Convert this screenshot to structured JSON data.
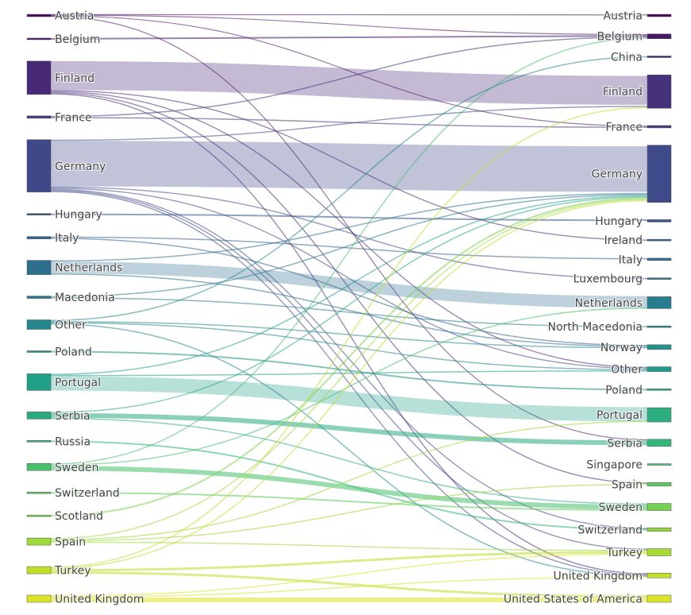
{
  "chart_data": {
    "type": "sankey",
    "title": "",
    "sources": [
      {
        "name": "Austria",
        "value": 1
      },
      {
        "name": "Belgium",
        "value": 0.5
      },
      {
        "name": "Finland",
        "value": 14
      },
      {
        "name": "France",
        "value": 1
      },
      {
        "name": "Germany",
        "value": 22
      },
      {
        "name": "Hungary",
        "value": 0.5
      },
      {
        "name": "Italy",
        "value": 1
      },
      {
        "name": "Netherlands",
        "value": 6
      },
      {
        "name": "Macedonia",
        "value": 1
      },
      {
        "name": "Other",
        "value": 4
      },
      {
        "name": "Poland",
        "value": 0.5
      },
      {
        "name": "Portugal",
        "value": 7
      },
      {
        "name": "Serbia",
        "value": 3
      },
      {
        "name": "Russia",
        "value": 0.5
      },
      {
        "name": "Sweden",
        "value": 3
      },
      {
        "name": "Switzerland",
        "value": 0.5
      },
      {
        "name": "Scotland",
        "value": 0.5
      },
      {
        "name": "Spain",
        "value": 3
      },
      {
        "name": "Turkey",
        "value": 3
      },
      {
        "name": "United Kingdom",
        "value": 3
      }
    ],
    "targets": [
      {
        "name": "Austria",
        "value": 1
      },
      {
        "name": "Belgium",
        "value": 2
      },
      {
        "name": "China",
        "value": 0.5
      },
      {
        "name": "Finland",
        "value": 14
      },
      {
        "name": "France",
        "value": 1
      },
      {
        "name": "Germany",
        "value": 24
      },
      {
        "name": "Hungary",
        "value": 1
      },
      {
        "name": "Ireland",
        "value": 0.5
      },
      {
        "name": "Italy",
        "value": 1
      },
      {
        "name": "Luxembourg",
        "value": 0.5
      },
      {
        "name": "Netherlands",
        "value": 5
      },
      {
        "name": "North Macedonia",
        "value": 0.5
      },
      {
        "name": "Norway",
        "value": 2
      },
      {
        "name": "Other",
        "value": 2
      },
      {
        "name": "Poland",
        "value": 0.5
      },
      {
        "name": "Portugal",
        "value": 6
      },
      {
        "name": "Serbia",
        "value": 3
      },
      {
        "name": "Singapore",
        "value": 0.5
      },
      {
        "name": "Spain",
        "value": 1.5
      },
      {
        "name": "Sweden",
        "value": 3
      },
      {
        "name": "Switzerland",
        "value": 1.5
      },
      {
        "name": "Turkey",
        "value": 3
      },
      {
        "name": "United Kingdom",
        "value": 2
      },
      {
        "name": "United States of America",
        "value": 3
      }
    ],
    "links": [
      {
        "source": "Austria",
        "target": "Austria",
        "value": 0.5
      },
      {
        "source": "Austria",
        "target": "Belgium",
        "value": 0.5
      },
      {
        "source": "Austria",
        "target": "France",
        "value": 0.5
      },
      {
        "source": "Austria",
        "target": "Serbia",
        "value": 0.5
      },
      {
        "source": "Belgium",
        "target": "Belgium",
        "value": 0.5
      },
      {
        "source": "Finland",
        "target": "Finland",
        "value": 13
      },
      {
        "source": "Finland",
        "target": "Ireland",
        "value": 0.5
      },
      {
        "source": "Finland",
        "target": "Other",
        "value": 0.5
      },
      {
        "source": "Finland",
        "target": "Spain",
        "value": 0.5
      },
      {
        "source": "Finland",
        "target": "United Kingdom",
        "value": 0.5
      },
      {
        "source": "France",
        "target": "Belgium",
        "value": 0.5
      },
      {
        "source": "France",
        "target": "France",
        "value": 0.5
      },
      {
        "source": "Germany",
        "target": "Finland",
        "value": 0.5
      },
      {
        "source": "Germany",
        "target": "Germany",
        "value": 20
      },
      {
        "source": "Germany",
        "target": "Luxembourg",
        "value": 0.5
      },
      {
        "source": "Germany",
        "target": "Other",
        "value": 0.5
      },
      {
        "source": "Germany",
        "target": "Switzerland",
        "value": 0.5
      },
      {
        "source": "Germany",
        "target": "Turkey",
        "value": 0.5
      },
      {
        "source": "Germany",
        "target": "United Kingdom",
        "value": 0.5
      },
      {
        "source": "Hungary",
        "target": "Hungary",
        "value": 0.5
      },
      {
        "source": "Italy",
        "target": "Italy",
        "value": 0.5
      },
      {
        "source": "Italy",
        "target": "Norway",
        "value": 0.5
      },
      {
        "source": "Netherlands",
        "target": "Netherlands",
        "value": 5
      },
      {
        "source": "Netherlands",
        "target": "Germany",
        "value": 0.5
      },
      {
        "source": "Netherlands",
        "target": "Norway",
        "value": 0.5
      },
      {
        "source": "Macedonia",
        "target": "North Macedonia",
        "value": 0.5
      },
      {
        "source": "Macedonia",
        "target": "Germany",
        "value": 0.5
      },
      {
        "source": "Other",
        "target": "China",
        "value": 0.5
      },
      {
        "source": "Other",
        "target": "Norway",
        "value": 0.5
      },
      {
        "source": "Other",
        "target": "Other",
        "value": 0.5
      },
      {
        "source": "Other",
        "target": "United Kingdom",
        "value": 0.5
      },
      {
        "source": "Poland",
        "target": "Poland",
        "value": 0.5
      },
      {
        "source": "Portugal",
        "target": "Portugal",
        "value": 6
      },
      {
        "source": "Portugal",
        "target": "Germany",
        "value": 0.5
      },
      {
        "source": "Portugal",
        "target": "Other",
        "value": 0.5
      },
      {
        "source": "Serbia",
        "target": "Serbia",
        "value": 2
      },
      {
        "source": "Serbia",
        "target": "Germany",
        "value": 0.5
      },
      {
        "source": "Serbia",
        "target": "Sweden",
        "value": 0.5
      },
      {
        "source": "Russia",
        "target": "Switzerland",
        "value": 0.5
      },
      {
        "source": "Sweden",
        "target": "Sweden",
        "value": 2
      },
      {
        "source": "Sweden",
        "target": "Belgium",
        "value": 0.5
      },
      {
        "source": "Sweden",
        "target": "Netherlands",
        "value": 0.5
      },
      {
        "source": "Switzerland",
        "target": "Sweden",
        "value": 0.5
      },
      {
        "source": "Scotland",
        "target": "Germany",
        "value": 0.5
      },
      {
        "source": "Spain",
        "target": "Spain",
        "value": 0.5
      },
      {
        "source": "Spain",
        "target": "Turkey",
        "value": 0.5
      },
      {
        "source": "Spain",
        "target": "Germany",
        "value": 0.5
      },
      {
        "source": "Spain",
        "target": "Portugal",
        "value": 0.5
      },
      {
        "source": "Turkey",
        "target": "Turkey",
        "value": 1
      },
      {
        "source": "Turkey",
        "target": "Germany",
        "value": 0.5
      },
      {
        "source": "Turkey",
        "target": "Finland",
        "value": 0.5
      },
      {
        "source": "Turkey",
        "target": "United States of America",
        "value": 1
      },
      {
        "source": "United Kingdom",
        "target": "Turkey",
        "value": 0.5
      },
      {
        "source": "United Kingdom",
        "target": "United Kingdom",
        "value": 0.5
      },
      {
        "source": "United Kingdom",
        "target": "United States of America",
        "value": 2
      }
    ]
  }
}
